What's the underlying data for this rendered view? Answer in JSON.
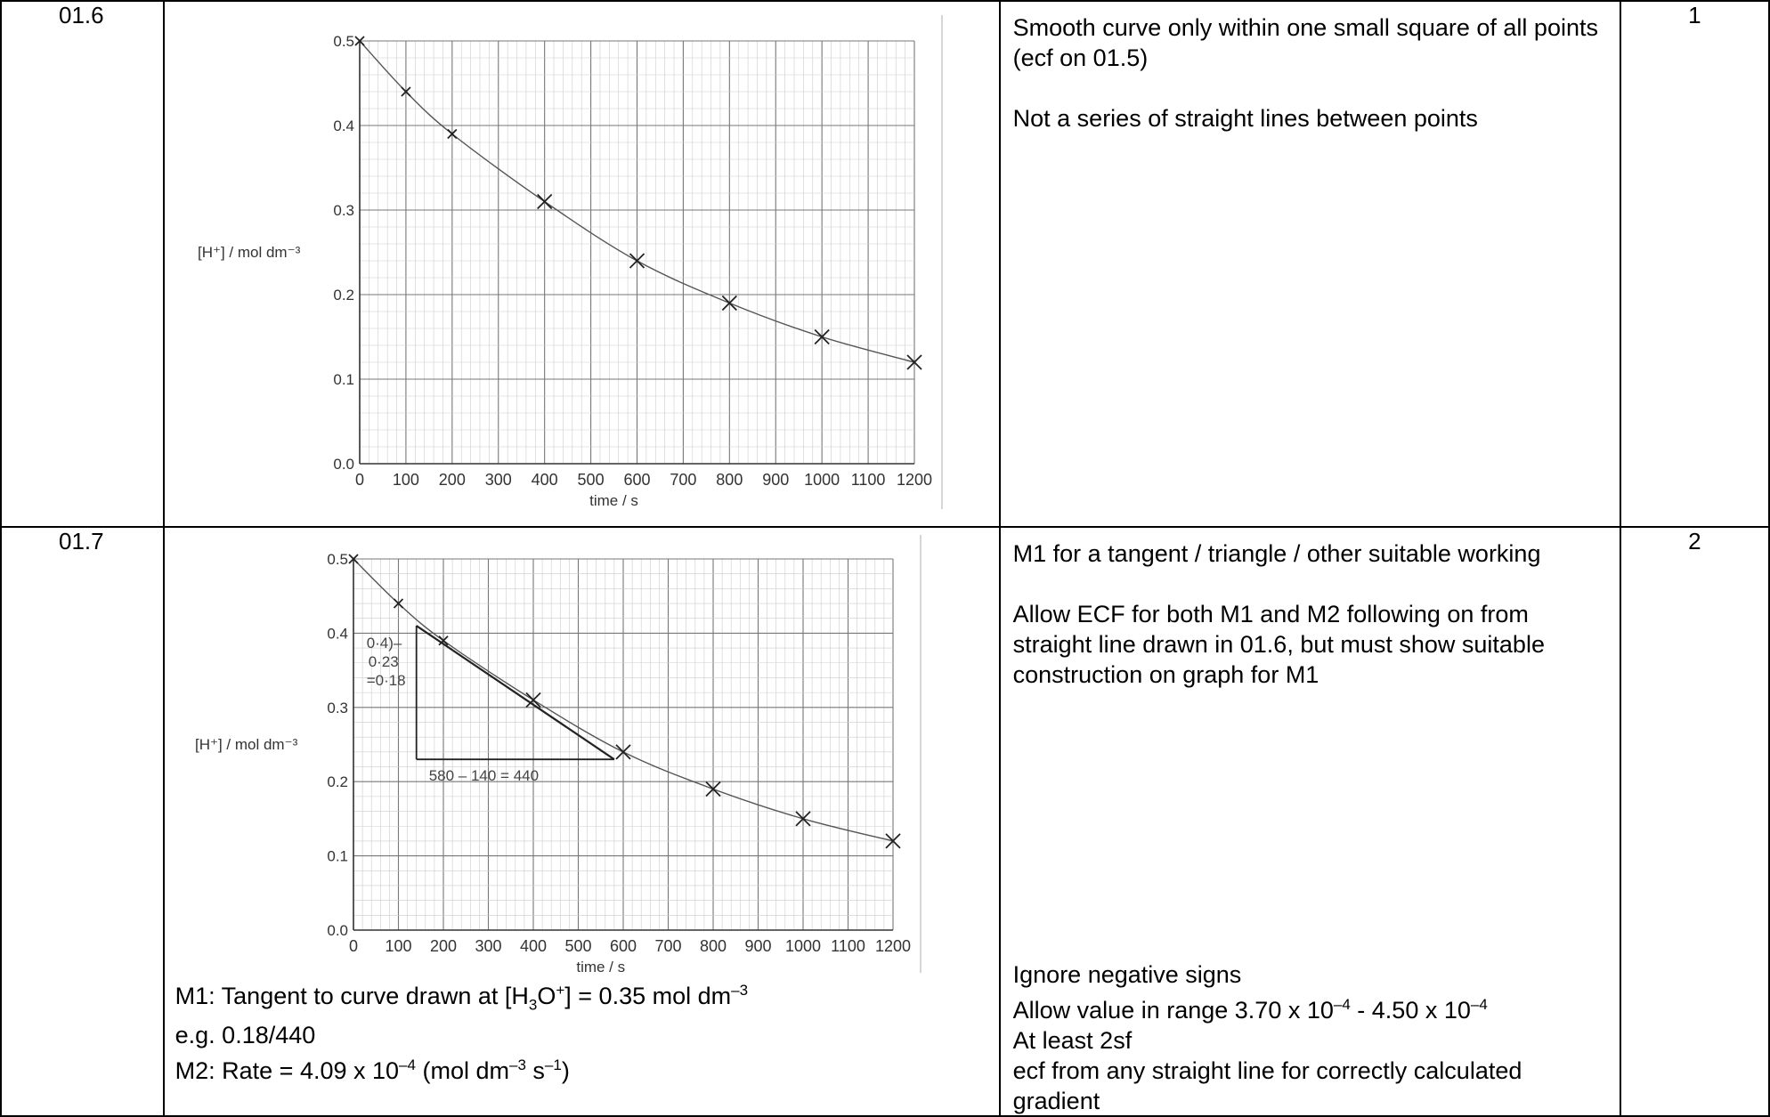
{
  "rows": [
    {
      "qnum": "01.6",
      "marks": "1",
      "guidance": [
        "Smooth curve only within one small square of all points (ecf on 01.5)",
        "Not a series of straight lines between points"
      ]
    },
    {
      "qnum": "01.7",
      "marks": "2",
      "guidance_top": [
        "M1 for a tangent / triangle / other suitable working",
        "Allow ECF for both M1 and M2 following on from straight line drawn in 01.6, but must show suitable construction on graph for M1"
      ],
      "guidance_bottom": {
        "line1": "Ignore negative signs",
        "line2_a": "Allow value in range 3.70 x 10",
        "line2_exp1": "–4",
        "line2_b": " - 4.50 x 10",
        "line2_exp2": "–4",
        "line3": "At least 2sf",
        "line4": "ecf from any straight line for correctly calculated gradient"
      },
      "answer": {
        "m1_a": "M1: Tangent to curve drawn at [H",
        "m1_sub": "3",
        "m1_b": "O",
        "m1_sup": "+",
        "m1_c": "] = 0.35 mol dm",
        "m1_exp": "–3",
        "eg": "e.g. 0.18/440",
        "m2_a": "M2: Rate = 4.09 x 10",
        "m2_exp1": "–4",
        "m2_b": " (mol dm",
        "m2_exp2": "–3",
        "m2_c": " s",
        "m2_exp3": "–1",
        "m2_d": ")"
      },
      "handwriting": {
        "dy_line1": "0·4)–",
        "dy_line2": "0·23",
        "dy_line3": "=0·18",
        "dx": "580 – 140 = 440"
      }
    }
  ],
  "chart_data": [
    {
      "type": "scatter",
      "ylabel": "[H⁺] / mol dm⁻³",
      "xlabel": "time / s",
      "x": [
        0,
        100,
        200,
        400,
        600,
        800,
        1000,
        1200
      ],
      "y": [
        0.5,
        0.44,
        0.39,
        0.31,
        0.24,
        0.19,
        0.15,
        0.12
      ],
      "xticks": [
        "0",
        "100",
        "200",
        "300",
        "400",
        "500",
        "600",
        "700",
        "800",
        "900",
        "1000",
        "1100",
        "1200"
      ],
      "yticks": [
        "0.0",
        "0.1",
        "0.2",
        "0.3",
        "0.4",
        "0.5"
      ],
      "xlim": [
        0,
        1200
      ],
      "ylim": [
        0,
        0.5
      ],
      "grid": true,
      "curve": "smooth line of best fit"
    },
    {
      "type": "scatter",
      "ylabel": "[H⁺] / mol dm⁻³",
      "xlabel": "time / s",
      "x": [
        0,
        100,
        200,
        400,
        600,
        800,
        1000,
        1200
      ],
      "y": [
        0.5,
        0.44,
        0.39,
        0.31,
        0.24,
        0.19,
        0.15,
        0.12
      ],
      "xticks": [
        "0",
        "100",
        "200",
        "300",
        "400",
        "500",
        "600",
        "700",
        "800",
        "900",
        "1000",
        "1100",
        "1200"
      ],
      "yticks": [
        "0.0",
        "0.1",
        "0.2",
        "0.3",
        "0.4",
        "0.5"
      ],
      "xlim": [
        0,
        1200
      ],
      "ylim": [
        0,
        0.5
      ],
      "grid": true,
      "curve": "smooth line of best fit",
      "tangent": {
        "x": [
          140,
          580
        ],
        "y": [
          0.41,
          0.23
        ]
      }
    }
  ]
}
